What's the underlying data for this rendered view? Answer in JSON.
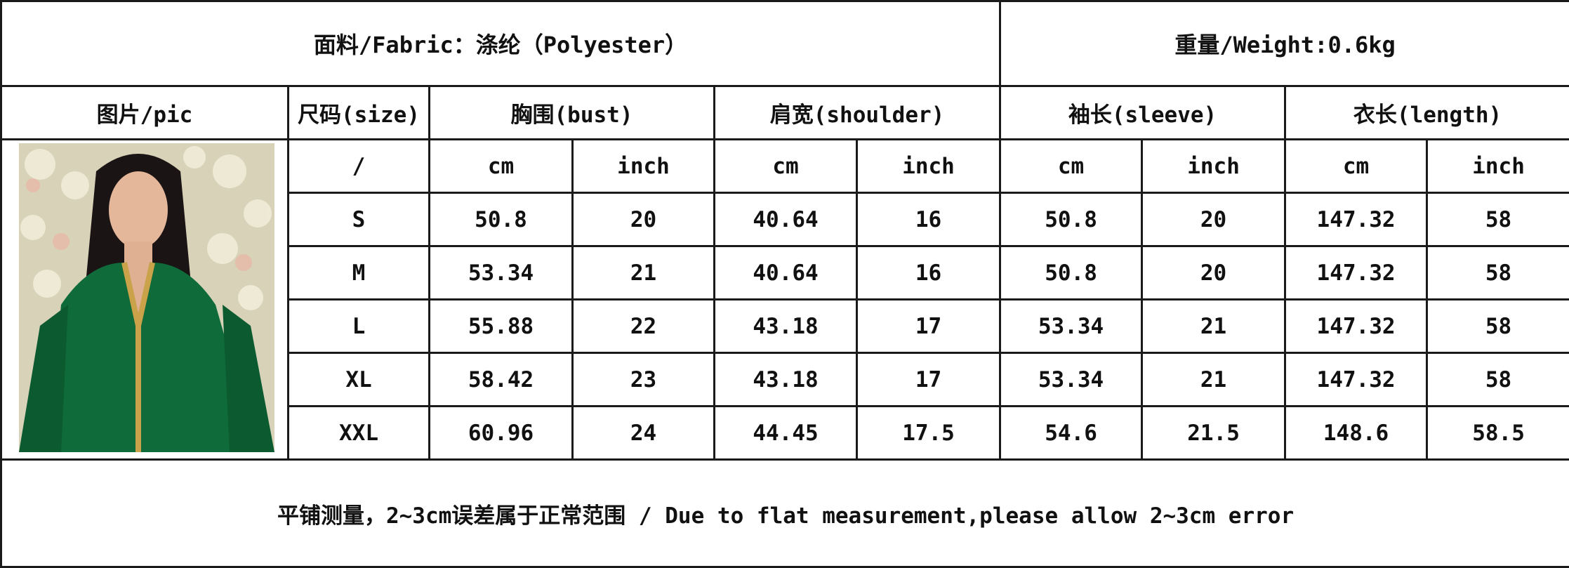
{
  "fabric": "面料/Fabric：涤纶（Polyester）",
  "weight": "重量/Weight:0.6kg",
  "headers": {
    "pic": "图片/pic",
    "size": "尺码(size)",
    "bust": "胸围(bust)",
    "shoulder": "肩宽(shoulder)",
    "sleeve": "袖长(sleeve)",
    "length": "衣长(length)"
  },
  "units": [
    "/",
    "cm",
    "inch",
    "cm",
    "inch",
    "cm",
    "inch",
    "cm",
    "inch"
  ],
  "rows": [
    [
      "S",
      "50.8",
      "20",
      "40.64",
      "16",
      "50.8",
      "20",
      "147.32",
      "58"
    ],
    [
      "M",
      "53.34",
      "21",
      "40.64",
      "16",
      "50.8",
      "20",
      "147.32",
      "58"
    ],
    [
      "L",
      "55.88",
      "22",
      "43.18",
      "17",
      "53.34",
      "21",
      "147.32",
      "58"
    ],
    [
      "XL",
      "58.42",
      "23",
      "43.18",
      "17",
      "53.34",
      "21",
      "147.32",
      "58"
    ],
    [
      "XXL",
      "60.96",
      "24",
      "44.45",
      "17.5",
      "54.6",
      "21.5",
      "148.6",
      "58.5"
    ]
  ],
  "note": "平铺测量，2~3cm误差属于正常范围 / Due to flat measurement,please allow 2~3cm error",
  "colors": {
    "dress": "#0f6b3a",
    "trim": "#c9a24a"
  }
}
